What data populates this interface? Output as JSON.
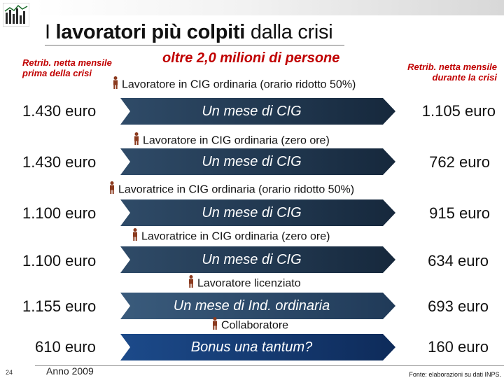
{
  "title": {
    "prefix": "I ",
    "bold": "lavoratori più colpiti",
    "suffix": " dalla crisi"
  },
  "header": {
    "left_line1": "Retrib. netta mensile",
    "left_line2": "prima della crisi",
    "center": "oltre 2,0 milioni di persone",
    "right_line1": "Retrib. netta mensile",
    "right_line2": "durante la crisi"
  },
  "rows": [
    {
      "category": "Lavoratore in CIG ordinaria (orario ridotto 50%)",
      "before": "1.430 euro",
      "arrow": "Un mese di CIG",
      "after": "1.105 euro"
    },
    {
      "category": "Lavoratore in CIG ordinaria (zero ore)",
      "before": "1.430 euro",
      "arrow": "Un mese di CIG",
      "after": "762 euro"
    },
    {
      "category": "Lavoratrice in CIG ordinaria (orario ridotto 50%)",
      "before": "1.100 euro",
      "arrow": "Un mese di CIG",
      "after": "915 euro"
    },
    {
      "category": "Lavoratrice in CIG ordinaria (zero ore)",
      "before": "1.100 euro",
      "arrow": "Un mese di CIG",
      "after": "634 euro"
    },
    {
      "category": "Lavoratore licenziato",
      "before": "1.155 euro",
      "arrow": "Un mese di Ind. ordinaria",
      "after": "693 euro"
    },
    {
      "category": "Collaboratore",
      "before": "610 euro",
      "arrow": "Bonus una tantum?",
      "after": "160 euro"
    }
  ],
  "footer": {
    "page_number": "24",
    "year": "Anno 2009",
    "source": "Fonte: elaborazioni su dati INPS."
  },
  "colors": {
    "accent_red": "#c00000",
    "arrow_dark": "#16283c",
    "arrow_light": "#2f4b68",
    "figure": "#8b3a1e"
  },
  "icons": {
    "worker": "person-icon",
    "logo": "bar-chart-logo-icon"
  }
}
